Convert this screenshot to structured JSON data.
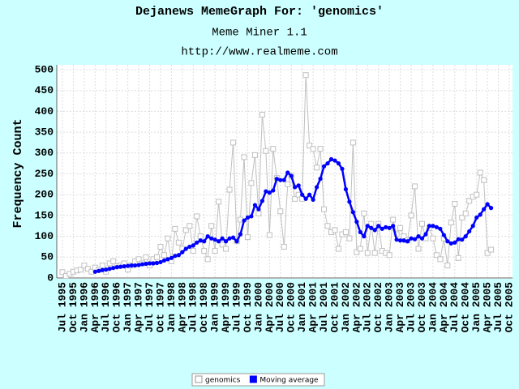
{
  "chart_data": {
    "type": "line",
    "title": "Dejanews MemeGraph For: 'genomics'",
    "subtitle": "Meme Miner 1.1",
    "url": "http://www.realmeme.com",
    "y_label": "Frequency Count",
    "categories": [
      "Jul 1995",
      null,
      null,
      "Oct 1995",
      null,
      null,
      "Jan 1996",
      null,
      null,
      "Apr 1996",
      null,
      null,
      "Jul 1996",
      null,
      null,
      "Oct 1996",
      null,
      null,
      "Jan 1997",
      null,
      null,
      "Apr 1997",
      null,
      null,
      "Jul 1997",
      null,
      null,
      "Oct 1997",
      null,
      null,
      "Jan 1998",
      null,
      null,
      "Apr 1998",
      null,
      null,
      "Jul 1998",
      null,
      null,
      "Oct 1998",
      null,
      null,
      "Jan 1999",
      null,
      null,
      "Apr 1999",
      null,
      null,
      "Jul 1999",
      null,
      null,
      "Oct 1999",
      null,
      null,
      "Jan 2000",
      null,
      null,
      "Apr 2000",
      null,
      null,
      "Jul 2000",
      null,
      null,
      "Oct 2000",
      null,
      null,
      "Jan 2001",
      null,
      null,
      "Apr 2001",
      null,
      null,
      "Jul 2001",
      null,
      null,
      "Oct 2001",
      null,
      null,
      "Jan 2002",
      null,
      null,
      "Apr 2002",
      null,
      null,
      "Jul 2002",
      null,
      null,
      "Oct 2002",
      null,
      null,
      "Jan 2003",
      null,
      null,
      "Apr 2003",
      null,
      null,
      "Jul 2003",
      null,
      null,
      "Oct 2003",
      null,
      null,
      "Jan 2004",
      null,
      null,
      "Apr 2004",
      null,
      null,
      "Jul 2004",
      null,
      null,
      "Oct 2004",
      null,
      null,
      "Jan 2005",
      null,
      null,
      "Apr 2005",
      null,
      null,
      "Jul 2005",
      null,
      null,
      "Oct 2005"
    ],
    "series": [
      {
        "name": "genomics",
        "color": "#c0c0c0",
        "marker": "square",
        "values": [
          14,
          5,
          10,
          15,
          18,
          20,
          30,
          22,
          15,
          25,
          20,
          30,
          15,
          35,
          40,
          28,
          30,
          35,
          20,
          30,
          40,
          45,
          35,
          50,
          30,
          45,
          50,
          75,
          55,
          95,
          40,
          118,
          85,
          70,
          115,
          125,
          65,
          148,
          100,
          65,
          45,
          125,
          65,
          183,
          80,
          70,
          212,
          325,
          88,
          140,
          290,
          98,
          228,
          295,
          155,
          392,
          305,
          103,
          310,
          240,
          160,
          75,
          225,
          245,
          190,
          200,
          190,
          487,
          318,
          310,
          265,
          310,
          165,
          125,
          110,
          115,
          70,
          105,
          110,
          95,
          325,
          62,
          70,
          155,
          60,
          130,
          60,
          130,
          65,
          60,
          55,
          140,
          105,
          120,
          100,
          90,
          150,
          220,
          70,
          130,
          95,
          120,
          95,
          55,
          45,
          95,
          30,
          133,
          178,
          48,
          145,
          155,
          185,
          195,
          200,
          253,
          235,
          60,
          68,
          null,
          null,
          null,
          null,
          null
        ]
      },
      {
        "name": "Moving average",
        "color": "#0000ff",
        "marker": "circle",
        "values": [
          null,
          null,
          null,
          null,
          null,
          null,
          null,
          null,
          null,
          15,
          17,
          19,
          20,
          22,
          24,
          26,
          27,
          28,
          29,
          30,
          30,
          31,
          33,
          34,
          35,
          35,
          36,
          38,
          42,
          45,
          48,
          53,
          55,
          62,
          70,
          75,
          78,
          85,
          90,
          88,
          100,
          95,
          92,
          88,
          95,
          88,
          95,
          97,
          88,
          105,
          138,
          145,
          148,
          175,
          165,
          185,
          208,
          205,
          210,
          238,
          235,
          235,
          253,
          245,
          218,
          222,
          200,
          190,
          200,
          188,
          218,
          238,
          268,
          275,
          285,
          282,
          275,
          262,
          213,
          183,
          158,
          135,
          110,
          100,
          125,
          120,
          115,
          125,
          118,
          122,
          120,
          125,
          92,
          90,
          90,
          88,
          95,
          93,
          100,
          95,
          105,
          125,
          125,
          122,
          118,
          103,
          88,
          83,
          85,
          93,
          92,
          100,
          112,
          125,
          145,
          152,
          165,
          177,
          168,
          null,
          null,
          null,
          null,
          null
        ]
      }
    ],
    "ylim": [
      0,
      500
    ],
    "yticks": [
      0,
      50,
      100,
      150,
      200,
      250,
      300,
      350,
      400,
      450,
      500
    ],
    "grid": true
  }
}
